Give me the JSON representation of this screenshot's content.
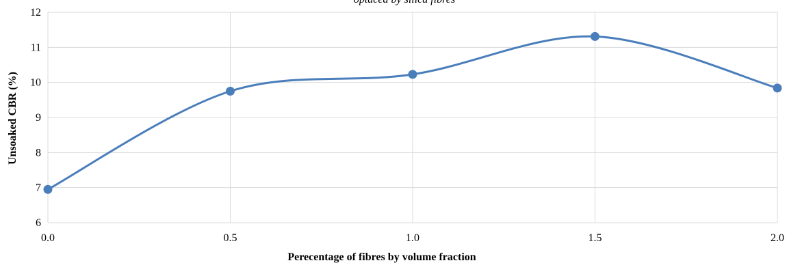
{
  "chart_data": {
    "type": "line",
    "title": "optacea by silica fibres",
    "xlabel": "Perecentage of fibres by volume fraction",
    "ylabel": "Unsoaked CBR (%)",
    "x": [
      0.0,
      0.5,
      1.0,
      1.5,
      2.0
    ],
    "x_tick_labels": [
      "0.0",
      "0.5",
      "1.0",
      "1.5",
      "2.0"
    ],
    "y_tick_labels": [
      "6",
      "7",
      "8",
      "9",
      "10",
      "11",
      "12"
    ],
    "xlim": [
      0.0,
      2.0
    ],
    "ylim": [
      6,
      12
    ],
    "grid": true,
    "smoothed": true,
    "series": [
      {
        "values": [
          6.95,
          9.75,
          10.23,
          11.31,
          9.84
        ],
        "color": "#4a7ebb"
      }
    ]
  }
}
